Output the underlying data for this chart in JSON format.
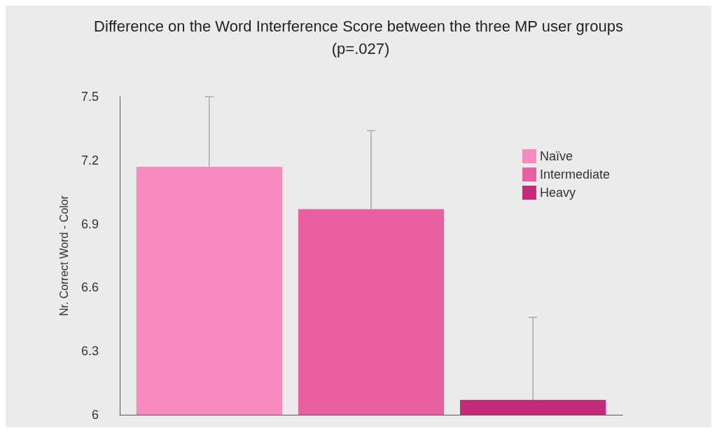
{
  "chart_data": {
    "type": "bar",
    "title": "Difference on the Word Interference Score between the three MP user groups (p=.027)",
    "ylabel": "Nr. Correct Word - Color",
    "categories": [
      null
    ],
    "series": [
      {
        "name": "Naïve",
        "color": "#f78bbd",
        "values": [
          7.17
        ],
        "errors": [
          [
            7.17,
            7.5
          ]
        ]
      },
      {
        "name": "Intermediate",
        "color": "#e8609f",
        "values": [
          6.97
        ],
        "errors": [
          [
            6.97,
            7.34
          ]
        ]
      },
      {
        "name": "Heavy",
        "color": "#c42a78",
        "values": [
          6.07
        ],
        "errors": [
          [
            6.07,
            6.46
          ]
        ]
      }
    ],
    "ylim": [
      6,
      7.5
    ],
    "yticks": [
      6,
      6.3,
      6.6,
      6.9,
      7.2,
      7.5
    ],
    "legend": "top right",
    "tick_labels": "y"
  }
}
